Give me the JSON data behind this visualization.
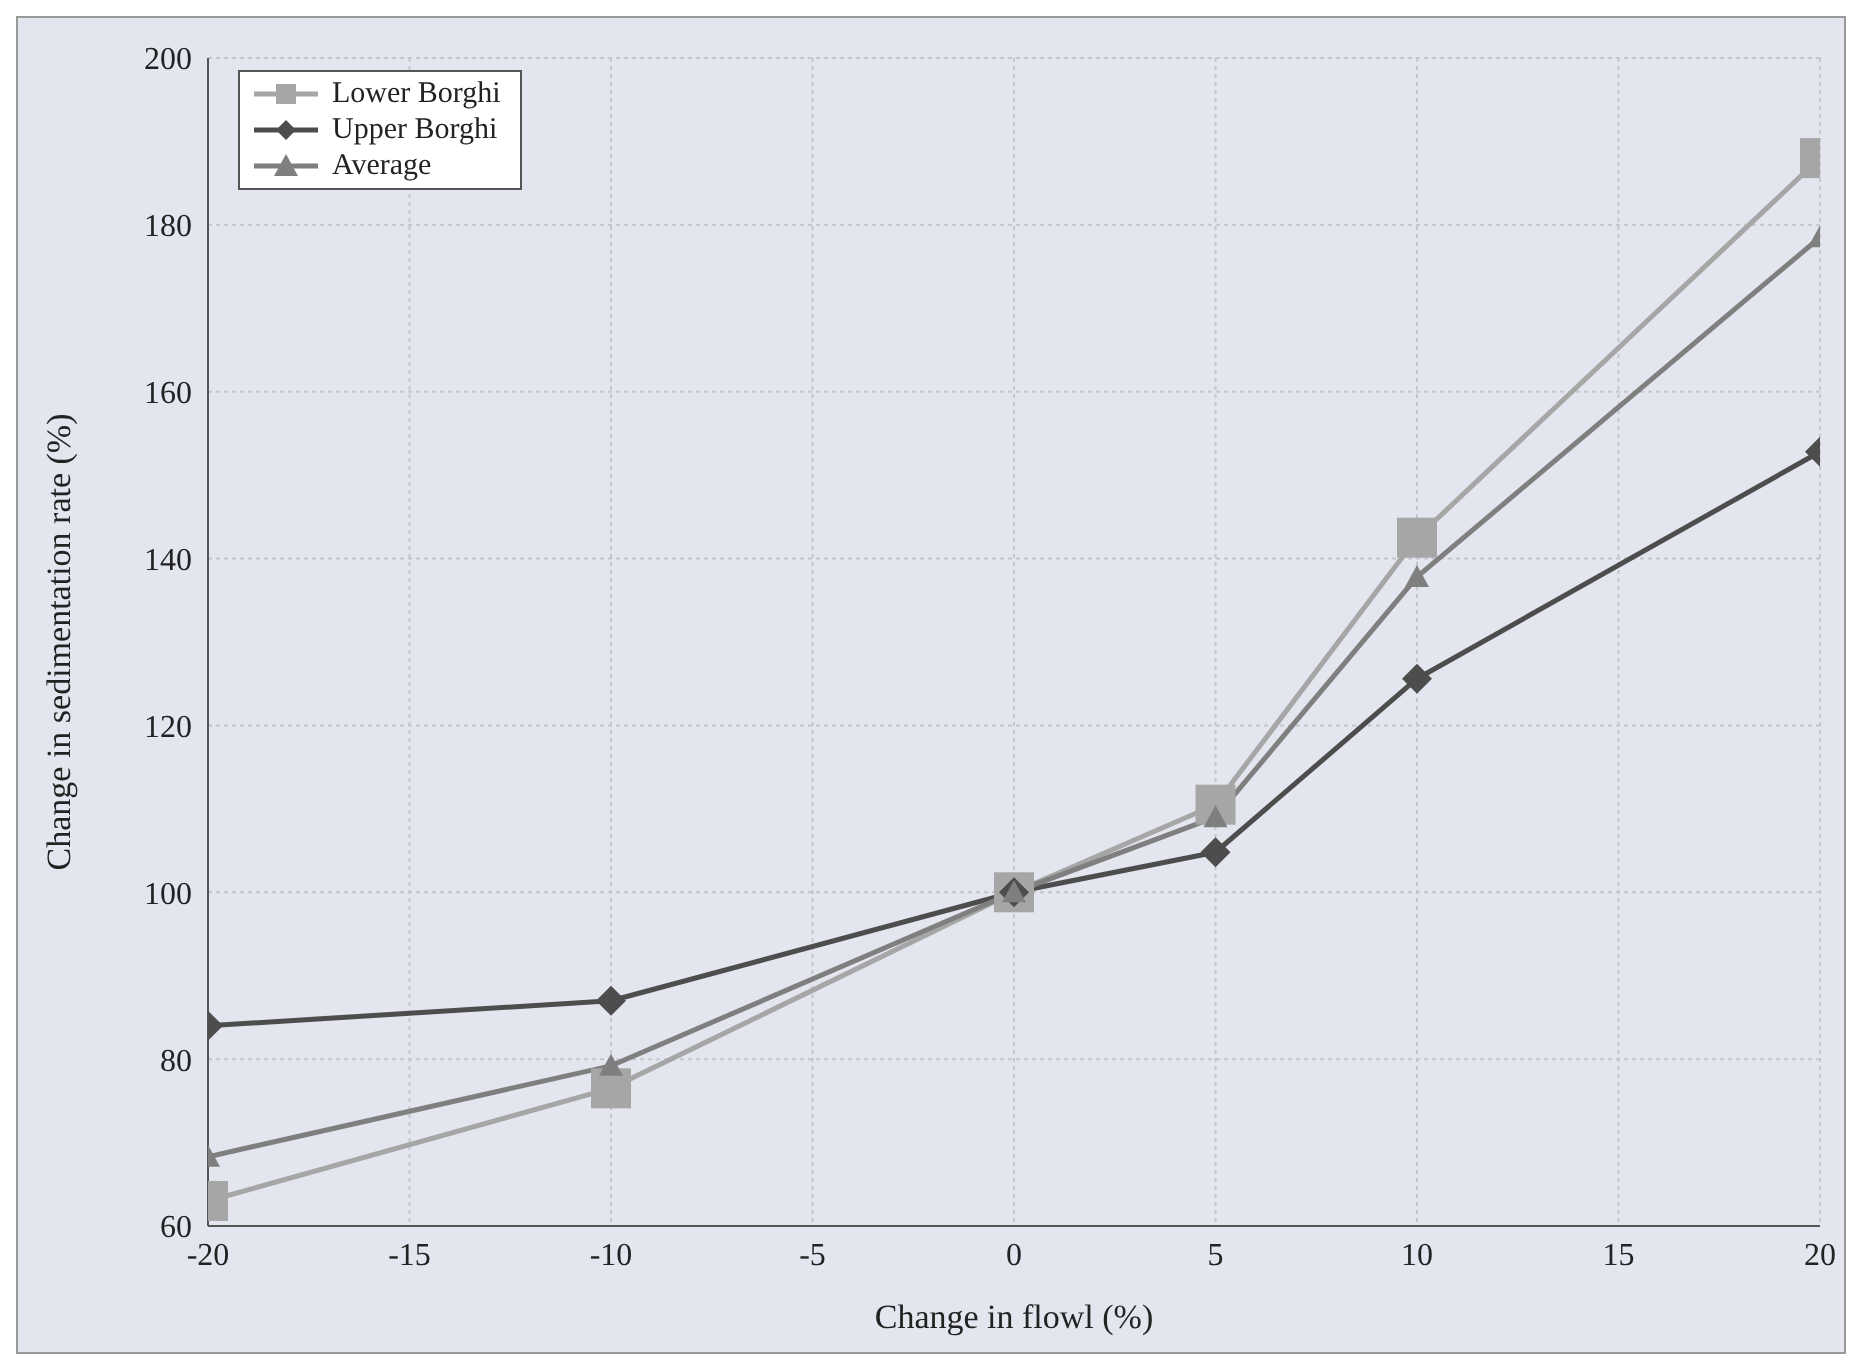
{
  "chart_data": {
    "type": "line",
    "xlabel": "Change in flowl (%)",
    "ylabel": "Change in sedimentation rate (%)",
    "x": [
      -20,
      -10,
      0,
      5,
      10,
      20
    ],
    "xlim": [
      -20,
      20
    ],
    "xticks": [
      -20,
      -15,
      -10,
      -5,
      0,
      5,
      10,
      15,
      20
    ],
    "ylim": [
      60,
      200
    ],
    "yticks": [
      60,
      80,
      100,
      120,
      140,
      160,
      180,
      200
    ],
    "grid": true,
    "legend": "top left",
    "line_style": "solid",
    "series": [
      {
        "name": "Lower Borghi",
        "color": "#a6a6a6",
        "marker": "square",
        "values": [
          63,
          76.5,
          100,
          110.5,
          142.5,
          188
        ]
      },
      {
        "name": "Upper Borghi",
        "color": "#4d4d4d",
        "marker": "diamond",
        "values": [
          84,
          87,
          100,
          104.8,
          125.6,
          152.8
        ]
      },
      {
        "name": "Average",
        "color": "#7f7f7f",
        "marker": "triangle",
        "values": [
          68.3,
          79.2,
          100,
          109,
          137.8,
          178.5
        ]
      }
    ]
  }
}
